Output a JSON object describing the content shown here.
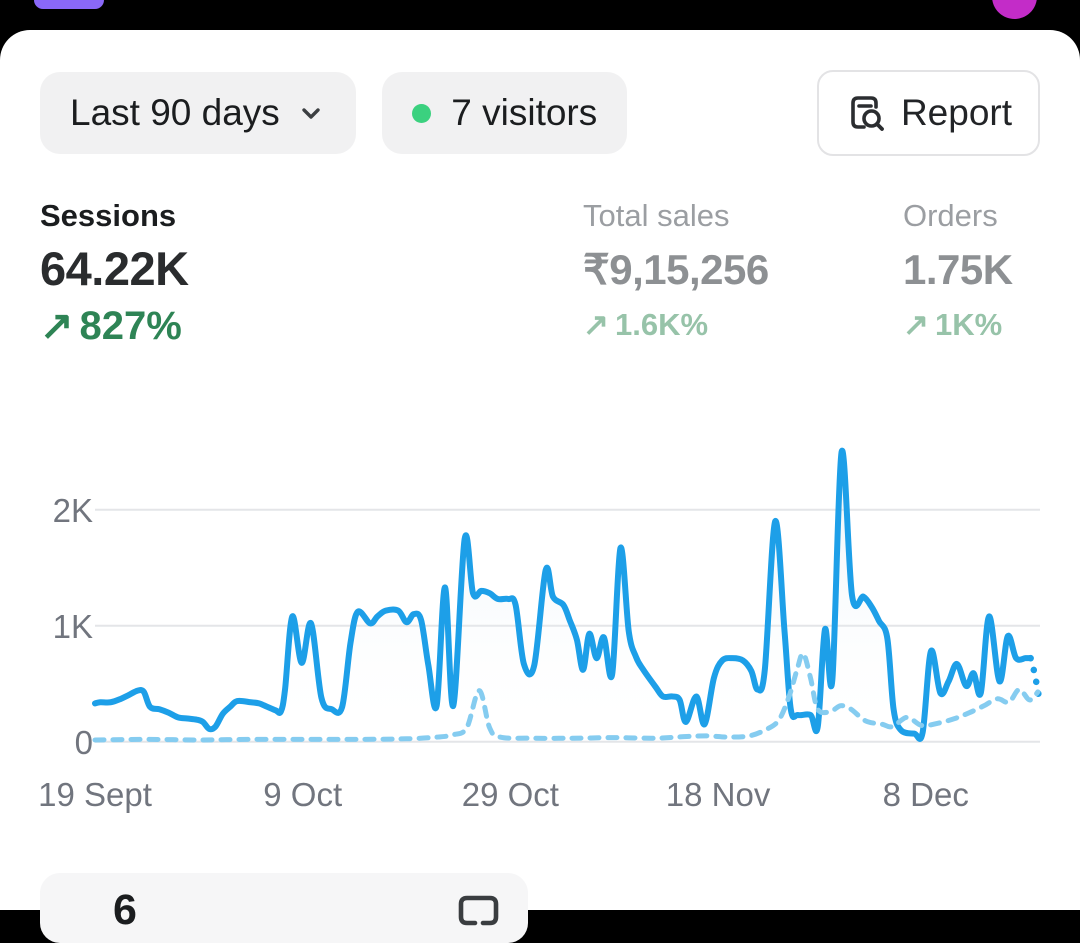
{
  "status_bar": {
    "bg": "#000000",
    "purple_pill_color": "#8a68f8",
    "magenta_dot_color": "#c32cc8"
  },
  "toolbar": {
    "date_range_label": "Last 90 days",
    "visitors_badge": {
      "label": "7 visitors",
      "dot_color": "#3bd17f"
    },
    "report_label": "Report"
  },
  "metrics": [
    {
      "id": "sessions",
      "label": "Sessions",
      "value": "64.22K",
      "delta_arrow": "↗",
      "delta": "827%",
      "emphasized": true
    },
    {
      "id": "total-sales",
      "label": "Total sales",
      "value": "₹9,15,256",
      "delta_arrow": "↗",
      "delta": "1.6K%",
      "emphasized": false
    },
    {
      "id": "orders",
      "label": "Orders",
      "value": "1.75K",
      "delta_arrow": "↗",
      "delta": "1K%",
      "emphasized": false
    }
  ],
  "chart_data": {
    "type": "line",
    "title": "Sessions over last 90 days vs previous period",
    "x_domain": [
      0,
      91
    ],
    "x_tick_days": [
      0,
      20,
      40,
      60,
      80
    ],
    "x_tick_labels": [
      "19 Sept",
      "9 Oct",
      "29 Oct",
      "18 Nov",
      "8 Dec"
    ],
    "y_ticks": [
      0,
      1000,
      2000
    ],
    "y_tick_labels": [
      "0",
      "1K",
      "2K"
    ],
    "ylim": [
      0,
      2600
    ],
    "grid_color": "#e4e5e8",
    "legend_position": "none",
    "series": [
      {
        "name": "sessions-current",
        "style": "solid",
        "color": "#1d9fe8",
        "width": 6,
        "fill_under": true,
        "points": [
          [
            0,
            330
          ],
          [
            0.5,
            340
          ],
          [
            1.5,
            340
          ],
          [
            2.5,
            370
          ],
          [
            3.2,
            400
          ],
          [
            4.1,
            440
          ],
          [
            4.7,
            430
          ],
          [
            5.3,
            300
          ],
          [
            6.2,
            280
          ],
          [
            7.1,
            250
          ],
          [
            8,
            210
          ],
          [
            8.9,
            200
          ],
          [
            9.8,
            190
          ],
          [
            10.4,
            170
          ],
          [
            11,
            110
          ],
          [
            11.6,
            130
          ],
          [
            12.3,
            240
          ],
          [
            13,
            300
          ],
          [
            13.7,
            350
          ],
          [
            15,
            340
          ],
          [
            15.8,
            330
          ],
          [
            16.6,
            300
          ],
          [
            17.4,
            270
          ],
          [
            17.9,
            260
          ],
          [
            18.3,
            450
          ],
          [
            19,
            1080
          ],
          [
            19.9,
            680
          ],
          [
            20.8,
            1020
          ],
          [
            21.8,
            380
          ],
          [
            22.8,
            280
          ],
          [
            23.8,
            300
          ],
          [
            24.6,
            850
          ],
          [
            25.3,
            1120
          ],
          [
            26.5,
            1020
          ],
          [
            27.2,
            1080
          ],
          [
            28,
            1130
          ],
          [
            29.2,
            1130
          ],
          [
            30,
            1030
          ],
          [
            30.7,
            1100
          ],
          [
            31.4,
            1050
          ],
          [
            32.1,
            660
          ],
          [
            32.9,
            310
          ],
          [
            33.7,
            1330
          ],
          [
            34.5,
            310
          ],
          [
            35.6,
            1750
          ],
          [
            36.4,
            1280
          ],
          [
            37.2,
            1300
          ],
          [
            38,
            1280
          ],
          [
            38.8,
            1230
          ],
          [
            39.8,
            1230
          ],
          [
            40.5,
            1180
          ],
          [
            41.3,
            670
          ],
          [
            42.3,
            660
          ],
          [
            43.4,
            1480
          ],
          [
            44.1,
            1250
          ],
          [
            45.1,
            1180
          ],
          [
            45.7,
            1050
          ],
          [
            46.4,
            880
          ],
          [
            47,
            620
          ],
          [
            47.6,
            930
          ],
          [
            48.3,
            720
          ],
          [
            49,
            900
          ],
          [
            49.8,
            580
          ],
          [
            50.6,
            1670
          ],
          [
            51.4,
            950
          ],
          [
            52.1,
            730
          ],
          [
            52.8,
            620
          ],
          [
            54,
            470
          ],
          [
            54.7,
            390
          ],
          [
            55.6,
            390
          ],
          [
            56.3,
            360
          ],
          [
            56.9,
            170
          ],
          [
            57.9,
            390
          ],
          [
            58.7,
            150
          ],
          [
            59.6,
            550
          ],
          [
            60.4,
            700
          ],
          [
            61.4,
            720
          ],
          [
            62.4,
            700
          ],
          [
            63.2,
            610
          ],
          [
            63.8,
            450
          ],
          [
            64.5,
            620
          ],
          [
            65.5,
            1900
          ],
          [
            66.4,
            950
          ],
          [
            67,
            280
          ],
          [
            67.7,
            230
          ],
          [
            68.9,
            230
          ],
          [
            69.6,
            130
          ],
          [
            70.3,
            970
          ],
          [
            71,
            530
          ],
          [
            71.9,
            2500
          ],
          [
            72.9,
            1260
          ],
          [
            74,
            1250
          ],
          [
            74.8,
            1160
          ],
          [
            75.5,
            1040
          ],
          [
            76.3,
            890
          ],
          [
            76.9,
            280
          ],
          [
            77.6,
            100
          ],
          [
            78.9,
            70
          ],
          [
            79.7,
            80
          ],
          [
            80.5,
            780
          ],
          [
            81.4,
            420
          ],
          [
            82.2,
            520
          ],
          [
            83,
            670
          ],
          [
            83.9,
            480
          ],
          [
            84.6,
            590
          ],
          [
            85.3,
            420
          ],
          [
            86.1,
            1080
          ],
          [
            87.1,
            520
          ],
          [
            87.9,
            910
          ],
          [
            88.7,
            720
          ],
          [
            89.6,
            720
          ],
          [
            90.1,
            720
          ]
        ]
      },
      {
        "name": "sessions-current-incomplete",
        "style": "dotted",
        "color": "#1d9fe8",
        "width": 6.5,
        "fill_under": false,
        "points": [
          [
            90.1,
            720
          ],
          [
            90.45,
            600
          ],
          [
            90.75,
            460
          ],
          [
            91,
            330
          ]
        ]
      },
      {
        "name": "sessions-previous",
        "style": "dashed",
        "color": "#85ccf0",
        "width": 5,
        "fill_under": false,
        "points": [
          [
            0,
            15
          ],
          [
            5,
            20
          ],
          [
            10,
            15
          ],
          [
            15,
            20
          ],
          [
            20,
            20
          ],
          [
            25,
            20
          ],
          [
            30,
            25
          ],
          [
            33,
            40
          ],
          [
            34.5,
            60
          ],
          [
            35.8,
            120
          ],
          [
            37,
            440
          ],
          [
            38,
            120
          ],
          [
            39,
            40
          ],
          [
            42,
            30
          ],
          [
            46,
            30
          ],
          [
            50,
            35
          ],
          [
            54,
            30
          ],
          [
            57,
            45
          ],
          [
            59,
            50
          ],
          [
            61,
            40
          ],
          [
            63,
            50
          ],
          [
            64.5,
            100
          ],
          [
            65.8,
            180
          ],
          [
            66.8,
            380
          ],
          [
            67.6,
            620
          ],
          [
            68.2,
            760
          ],
          [
            68.9,
            550
          ],
          [
            69.6,
            280
          ],
          [
            70.8,
            260
          ],
          [
            71.8,
            310
          ],
          [
            72.8,
            280
          ],
          [
            74.2,
            180
          ],
          [
            75.8,
            150
          ],
          [
            76.8,
            130
          ],
          [
            78.2,
            210
          ],
          [
            79.6,
            140
          ],
          [
            81.2,
            160
          ],
          [
            82.8,
            200
          ],
          [
            84.2,
            250
          ],
          [
            85.6,
            310
          ],
          [
            86.9,
            370
          ],
          [
            88,
            340
          ],
          [
            89,
            450
          ],
          [
            90,
            360
          ],
          [
            90.8,
            430
          ]
        ]
      }
    ]
  },
  "bottom_card": {
    "value": "6",
    "icon": "chat-bubble-icon"
  }
}
